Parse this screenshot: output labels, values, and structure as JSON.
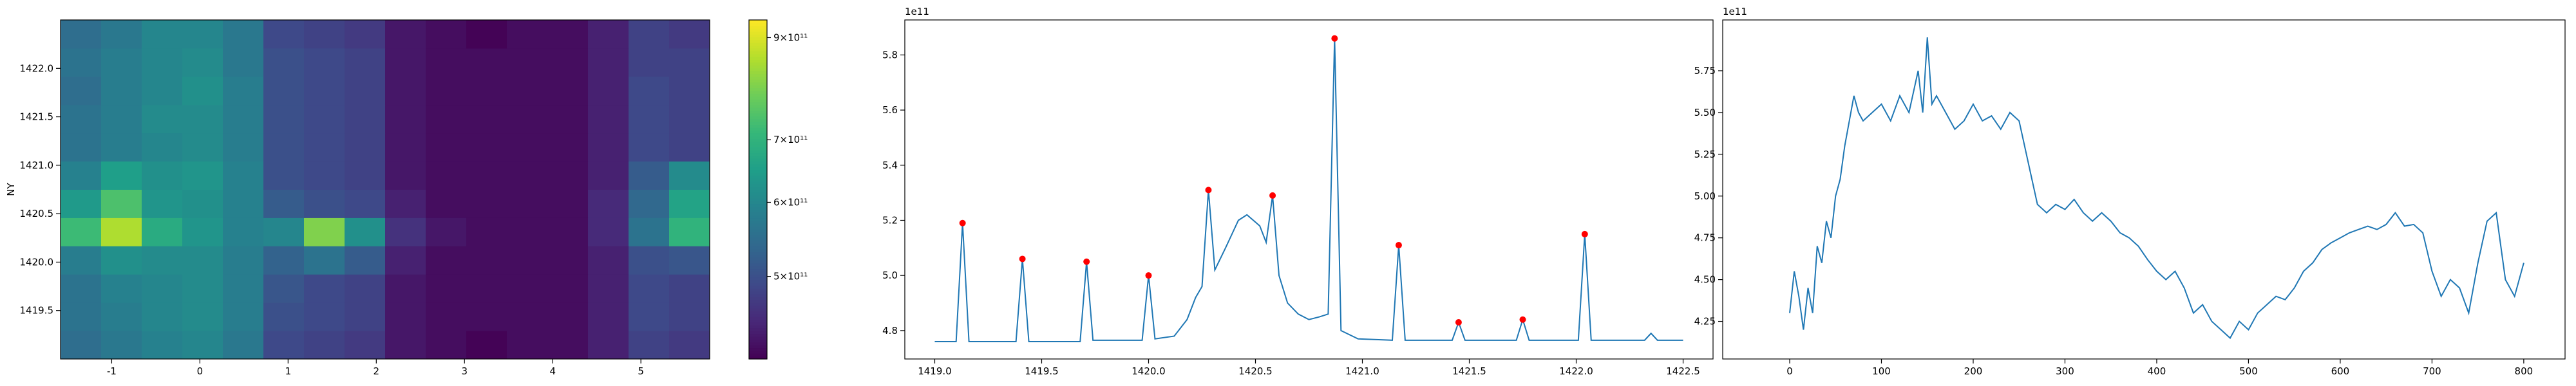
{
  "chart_data": [
    {
      "type": "heatmap",
      "ylabel": "NY",
      "colormap": "viridis",
      "color_scale": "log",
      "xlim": [
        -1.58,
        5.78
      ],
      "ylim": [
        1419.0,
        1422.5
      ],
      "xticks": [
        -1,
        0,
        1,
        2,
        3,
        4,
        5
      ],
      "yticks": [
        1419.5,
        {
          "value": 1420.0,
          "label": "1420.0"
        },
        1420.5,
        {
          "value": 1421.0,
          "label": "1421.0"
        },
        1421.5,
        {
          "value": 1422.0,
          "label": "1422.0"
        }
      ],
      "clim": [
        408000000000.0,
        940000000000.0
      ],
      "cticks": [
        {
          "value": 500000000000.0,
          "label": "5×10¹¹"
        },
        {
          "value": 600000000000.0,
          "label": "6×10¹¹"
        },
        {
          "value": 700000000000.0,
          "label": "7×10¹¹"
        },
        {
          "value": 900000000000.0,
          "label": "9×10¹¹"
        }
      ],
      "z": [
        [
          550000000000.0,
          570000000000.0,
          590000000000.0,
          600000000000.0,
          570000000000.0,
          490000000000.0,
          480000000000.0,
          470000000000.0,
          430000000000.0,
          420000000000.0,
          410000000000.0,
          420000000000.0,
          420000000000.0,
          440000000000.0,
          480000000000.0,
          470000000000.0
        ],
        [
          560000000000.0,
          580000000000.0,
          600000000000.0,
          610000000000.0,
          580000000000.0,
          500000000000.0,
          490000000000.0,
          480000000000.0,
          430000000000.0,
          420000000000.0,
          420000000000.0,
          420000000000.0,
          420000000000.0,
          440000000000.0,
          490000000000.0,
          480000000000.0
        ],
        [
          560000000000.0,
          590000000000.0,
          600000000000.0,
          610000000000.0,
          580000000000.0,
          510000000000.0,
          490000000000.0,
          480000000000.0,
          430000000000.0,
          420000000000.0,
          420000000000.0,
          420000000000.0,
          420000000000.0,
          440000000000.0,
          490000000000.0,
          480000000000.0
        ],
        [
          580000000000.0,
          620000000000.0,
          610000000000.0,
          610000000000.0,
          580000000000.0,
          530000000000.0,
          560000000000.0,
          520000000000.0,
          440000000000.0,
          420000000000.0,
          420000000000.0,
          420000000000.0,
          420000000000.0,
          440000000000.0,
          500000000000.0,
          510000000000.0
        ],
        [
          720000000000.0,
          850000000000.0,
          680000000000.0,
          630000000000.0,
          590000000000.0,
          600000000000.0,
          800000000000.0,
          620000000000.0,
          460000000000.0,
          430000000000.0,
          420000000000.0,
          420000000000.0,
          420000000000.0,
          450000000000.0,
          560000000000.0,
          700000000000.0
        ],
        [
          640000000000.0,
          740000000000.0,
          630000000000.0,
          620000000000.0,
          590000000000.0,
          520000000000.0,
          500000000000.0,
          490000000000.0,
          440000000000.0,
          420000000000.0,
          420000000000.0,
          420000000000.0,
          420000000000.0,
          450000000000.0,
          540000000000.0,
          660000000000.0
        ],
        [
          590000000000.0,
          650000000000.0,
          620000000000.0,
          630000000000.0,
          590000000000.0,
          500000000000.0,
          490000000000.0,
          480000000000.0,
          430000000000.0,
          420000000000.0,
          420000000000.0,
          420000000000.0,
          420000000000.0,
          440000000000.0,
          520000000000.0,
          610000000000.0
        ],
        [
          560000000000.0,
          580000000000.0,
          600000000000.0,
          610000000000.0,
          580000000000.0,
          500000000000.0,
          490000000000.0,
          480000000000.0,
          430000000000.0,
          420000000000.0,
          420000000000.0,
          420000000000.0,
          420000000000.0,
          440000000000.0,
          490000000000.0,
          480000000000.0
        ],
        [
          560000000000.0,
          580000000000.0,
          610000000000.0,
          610000000000.0,
          580000000000.0,
          500000000000.0,
          490000000000.0,
          480000000000.0,
          430000000000.0,
          420000000000.0,
          420000000000.0,
          420000000000.0,
          420000000000.0,
          440000000000.0,
          490000000000.0,
          480000000000.0
        ],
        [
          550000000000.0,
          580000000000.0,
          600000000000.0,
          620000000000.0,
          580000000000.0,
          500000000000.0,
          490000000000.0,
          480000000000.0,
          430000000000.0,
          420000000000.0,
          420000000000.0,
          420000000000.0,
          420000000000.0,
          440000000000.0,
          490000000000.0,
          480000000000.0
        ],
        [
          560000000000.0,
          580000000000.0,
          600000000000.0,
          610000000000.0,
          570000000000.0,
          500000000000.0,
          490000000000.0,
          480000000000.0,
          430000000000.0,
          420000000000.0,
          420000000000.0,
          420000000000.0,
          420000000000.0,
          440000000000.0,
          480000000000.0,
          480000000000.0
        ],
        [
          550000000000.0,
          570000000000.0,
          600000000000.0,
          600000000000.0,
          570000000000.0,
          490000000000.0,
          480000000000.0,
          470000000000.0,
          430000000000.0,
          420000000000.0,
          410000000000.0,
          420000000000.0,
          420000000000.0,
          440000000000.0,
          480000000000.0,
          470000000000.0
        ]
      ]
    },
    {
      "type": "line",
      "y_offset_text": "1e11",
      "xlim": [
        1418.86,
        1422.64
      ],
      "ylim": [
        4.697,
        5.927
      ],
      "xticks": [
        {
          "value": 1419.0,
          "label": "1419.0"
        },
        1419.5,
        {
          "value": 1420.0,
          "label": "1420.0"
        },
        1420.5,
        {
          "value": 1421.0,
          "label": "1421.0"
        },
        1421.5,
        {
          "value": 1422.0,
          "label": "1422.0"
        },
        1422.5
      ],
      "yticks": [
        4.8,
        {
          "value": 5.0,
          "label": "5.0"
        },
        5.2,
        5.4,
        5.6,
        5.8
      ],
      "series": [
        {
          "color": "#1f77b4",
          "x": [
            1419.0,
            1419.1,
            1419.13,
            1419.16,
            1419.38,
            1419.41,
            1419.44,
            1419.68,
            1419.71,
            1419.74,
            1419.97,
            1420.0,
            1420.03,
            1420.12,
            1420.18,
            1420.22,
            1420.25,
            1420.28,
            1420.31,
            1420.36,
            1420.42,
            1420.46,
            1420.52,
            1420.55,
            1420.58,
            1420.61,
            1420.65,
            1420.7,
            1420.75,
            1420.8,
            1420.84,
            1420.87,
            1420.9,
            1420.98,
            1421.14,
            1421.17,
            1421.2,
            1421.42,
            1421.45,
            1421.48,
            1421.72,
            1421.75,
            1421.78,
            1422.01,
            1422.04,
            1422.07,
            1422.32,
            1422.35,
            1422.38,
            1422.5
          ],
          "values": [
            4.76,
            4.76,
            5.19,
            4.76,
            4.76,
            5.06,
            4.76,
            4.76,
            5.05,
            4.765,
            4.765,
            5.0,
            4.77,
            4.78,
            4.84,
            4.92,
            4.96,
            5.31,
            5.02,
            5.1,
            5.2,
            5.22,
            5.18,
            5.12,
            5.29,
            5.0,
            4.9,
            4.86,
            4.84,
            4.85,
            4.86,
            5.86,
            4.8,
            4.77,
            4.765,
            5.11,
            4.765,
            4.765,
            4.83,
            4.765,
            4.765,
            4.84,
            4.765,
            4.765,
            5.15,
            4.765,
            4.765,
            4.79,
            4.765,
            4.765
          ]
        }
      ],
      "peaks": {
        "color": "red",
        "x": [
          1419.13,
          1419.41,
          1419.71,
          1420.0,
          1420.28,
          1420.58,
          1420.87,
          1421.17,
          1421.45,
          1421.75,
          1422.04
        ],
        "values": [
          5.19,
          5.06,
          5.05,
          5.0,
          5.31,
          5.29,
          5.86,
          5.11,
          4.83,
          4.84,
          5.15
        ]
      }
    },
    {
      "type": "line",
      "y_offset_text": "1e11",
      "xlim": [
        -73,
        845
      ],
      "ylim": [
        4.025,
        6.054
      ],
      "xticks": [
        0,
        100,
        200,
        300,
        400,
        500,
        600,
        700,
        800
      ],
      "yticks": [
        4.25,
        {
          "value": 4.5,
          "label": "4.50"
        },
        4.75,
        {
          "value": 5.0,
          "label": "5.00"
        },
        5.25,
        {
          "value": 5.5,
          "label": "5.50"
        },
        5.75
      ],
      "series": [
        {
          "color": "#1f77b4",
          "x": [
            0,
            5,
            10,
            15,
            20,
            25,
            30,
            35,
            40,
            45,
            50,
            55,
            60,
            65,
            70,
            75,
            80,
            90,
            100,
            110,
            120,
            130,
            140,
            145,
            150,
            155,
            160,
            170,
            180,
            190,
            200,
            210,
            220,
            230,
            240,
            250,
            260,
            270,
            280,
            290,
            300,
            310,
            320,
            330,
            340,
            350,
            360,
            370,
            380,
            390,
            400,
            410,
            420,
            430,
            440,
            450,
            460,
            470,
            480,
            490,
            500,
            510,
            520,
            530,
            540,
            550,
            560,
            570,
            580,
            590,
            600,
            610,
            620,
            630,
            640,
            650,
            660,
            670,
            680,
            690,
            700,
            710,
            720,
            730,
            740,
            750,
            760,
            770,
            780,
            790,
            800
          ],
          "values": [
            4.3,
            4.55,
            4.4,
            4.2,
            4.45,
            4.3,
            4.7,
            4.6,
            4.85,
            4.75,
            5.0,
            5.1,
            5.3,
            5.45,
            5.6,
            5.5,
            5.45,
            5.5,
            5.55,
            5.45,
            5.6,
            5.5,
            5.75,
            5.5,
            5.95,
            5.55,
            5.6,
            5.5,
            5.4,
            5.45,
            5.55,
            5.45,
            5.48,
            5.4,
            5.5,
            5.45,
            5.2,
            4.95,
            4.9,
            4.95,
            4.92,
            4.98,
            4.9,
            4.85,
            4.9,
            4.85,
            4.78,
            4.75,
            4.7,
            4.62,
            4.55,
            4.5,
            4.55,
            4.45,
            4.3,
            4.35,
            4.25,
            4.2,
            4.15,
            4.25,
            4.2,
            4.3,
            4.35,
            4.4,
            4.38,
            4.45,
            4.55,
            4.6,
            4.68,
            4.72,
            4.75,
            4.78,
            4.8,
            4.82,
            4.8,
            4.83,
            4.9,
            4.82,
            4.83,
            4.78,
            4.55,
            4.4,
            4.5,
            4.45,
            4.3,
            4.6,
            4.85,
            4.9,
            4.5,
            4.4,
            4.6
          ]
        }
      ]
    }
  ]
}
